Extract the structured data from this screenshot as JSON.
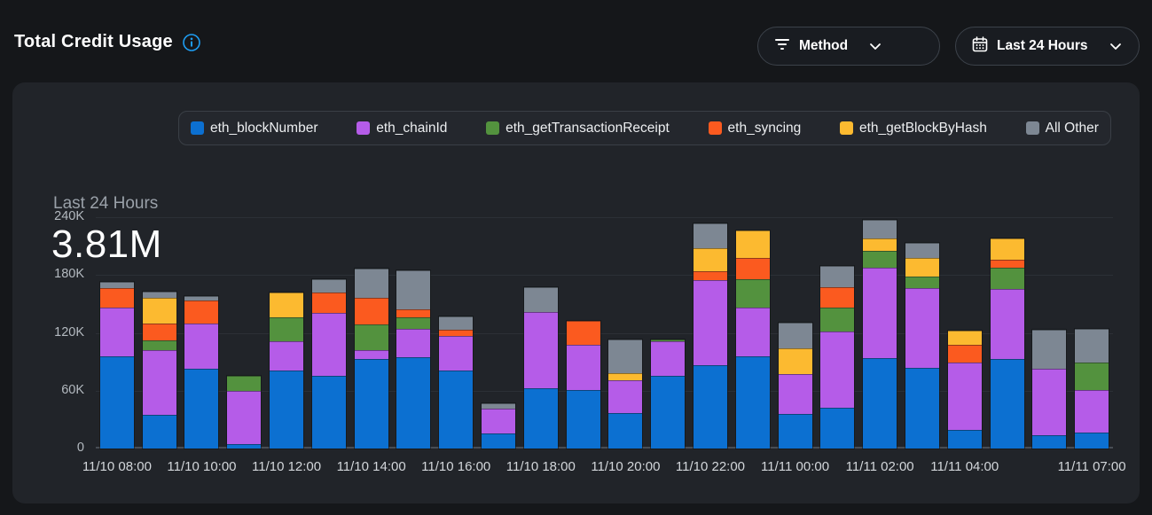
{
  "header": {
    "title": "Total Credit Usage",
    "method_filter_label": "Method",
    "time_range_label": "Last 24 Hours"
  },
  "panel": {
    "subtitle": "Last 24 Hours",
    "total": "3.81M"
  },
  "colors": {
    "accent_info": "#1e9df2",
    "panel_bg": "#212429",
    "page_bg": "#15171a"
  },
  "chart_data": {
    "type": "bar",
    "stacked": true,
    "title": "Total Credit Usage - Last 24 Hours",
    "total_label": "3.81M",
    "ylim": [
      0,
      240000
    ],
    "y_ticks": [
      {
        "value": 240000,
        "label": "240K"
      },
      {
        "value": 180000,
        "label": "180K"
      },
      {
        "value": 120000,
        "label": "120K"
      },
      {
        "value": 60000,
        "label": "60K"
      },
      {
        "value": 0,
        "label": "0"
      }
    ],
    "grid": true,
    "legend_position": "top",
    "x": [
      "11/10 08:00",
      "11/10 09:00",
      "11/10 10:00",
      "11/10 11:00",
      "11/10 12:00",
      "11/10 13:00",
      "11/10 14:00",
      "11/10 15:00",
      "11/10 16:00",
      "11/10 17:00",
      "11/10 18:00",
      "11/10 19:00",
      "11/10 20:00",
      "11/10 21:00",
      "11/10 22:00",
      "11/10 23:00",
      "11/11 00:00",
      "11/11 01:00",
      "11/11 02:00",
      "11/11 03:00",
      "11/11 04:00",
      "11/11 05:00",
      "11/11 06:00",
      "11/11 07:00"
    ],
    "x_tick_indices": [
      0,
      2,
      4,
      6,
      8,
      10,
      12,
      14,
      16,
      18,
      20,
      23
    ],
    "series": [
      {
        "name": "eth_blockNumber",
        "color": "#0c70d1",
        "values": [
          96000,
          35000,
          83000,
          5000,
          81000,
          75000,
          93000,
          95000,
          81000,
          16000,
          63000,
          61000,
          37000,
          75000,
          86000,
          96000,
          36000,
          42000,
          94000,
          84000,
          19000,
          93000,
          14000,
          17000
        ]
      },
      {
        "name": "eth_chainId",
        "color": "#b55ce8",
        "values": [
          50000,
          67000,
          47000,
          55000,
          30000,
          66000,
          9000,
          29000,
          36000,
          25000,
          79000,
          47000,
          34000,
          36000,
          89000,
          50000,
          41000,
          79000,
          94000,
          82000,
          70000,
          73000,
          69000,
          44000
        ]
      },
      {
        "name": "eth_getTransactionReceipt",
        "color": "#53923e",
        "values": [
          0,
          10000,
          0,
          15000,
          25000,
          0,
          27000,
          12000,
          0,
          0,
          0,
          0,
          0,
          2000,
          0,
          30000,
          0,
          25000,
          17000,
          12000,
          0,
          22000,
          0,
          28000
        ]
      },
      {
        "name": "eth_syncing",
        "color": "#fb5a1f",
        "values": [
          20000,
          18000,
          24000,
          0,
          0,
          21000,
          27000,
          8000,
          6000,
          0,
          0,
          24000,
          0,
          0,
          9000,
          22000,
          0,
          21000,
          0,
          0,
          19000,
          8000,
          0,
          0
        ]
      },
      {
        "name": "eth_getBlockByHash",
        "color": "#fcba30",
        "values": [
          0,
          26000,
          0,
          0,
          26000,
          0,
          0,
          0,
          0,
          0,
          0,
          0,
          7000,
          0,
          24000,
          28000,
          27000,
          0,
          13000,
          20000,
          14000,
          22000,
          0,
          0
        ]
      },
      {
        "name": "All Other",
        "color": "#7d8793",
        "values": [
          7000,
          7000,
          4000,
          0,
          0,
          14000,
          31000,
          41000,
          14000,
          6000,
          25000,
          0,
          35000,
          0,
          26000,
          0,
          27000,
          22000,
          19000,
          15000,
          0,
          0,
          40000,
          35000
        ]
      }
    ]
  }
}
